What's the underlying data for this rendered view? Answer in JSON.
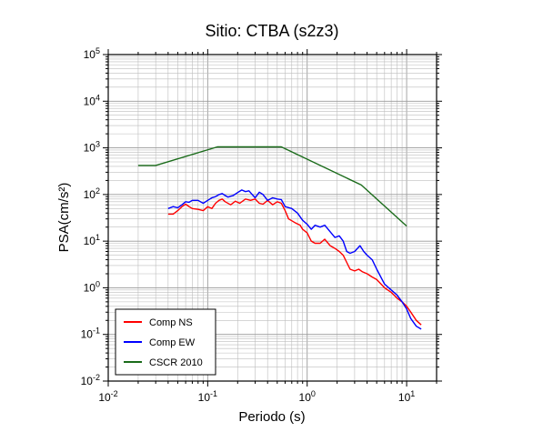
{
  "chart_data": {
    "type": "line",
    "title": "Sitio: CTBA (s2z3)",
    "xlabel": "Periodo (s)",
    "ylabel": "PSA(cm/s²)",
    "xscale": "log",
    "yscale": "log",
    "xlim": [
      0.01,
      20
    ],
    "ylim": [
      0.01,
      100000
    ],
    "grid": true,
    "legend_position": "bottom-left",
    "x_ticks": [
      {
        "value": 0.01,
        "base": "10",
        "exp": "-2"
      },
      {
        "value": 0.1,
        "base": "10",
        "exp": "-1"
      },
      {
        "value": 1,
        "base": "10",
        "exp": "0"
      },
      {
        "value": 10,
        "base": "10",
        "exp": "1"
      }
    ],
    "y_ticks": [
      {
        "value": 0.01,
        "base": "10",
        "exp": "-2"
      },
      {
        "value": 0.1,
        "base": "10",
        "exp": "-1"
      },
      {
        "value": 1,
        "base": "10",
        "exp": "0"
      },
      {
        "value": 10,
        "base": "10",
        "exp": "1"
      },
      {
        "value": 100,
        "base": "10",
        "exp": "2"
      },
      {
        "value": 1000,
        "base": "10",
        "exp": "3"
      },
      {
        "value": 10000,
        "base": "10",
        "exp": "4"
      },
      {
        "value": 100000,
        "base": "10",
        "exp": "5"
      }
    ],
    "series": [
      {
        "name": "Comp NS",
        "color": "#ff0000",
        "points": [
          [
            0.04,
            38
          ],
          [
            0.045,
            38
          ],
          [
            0.05,
            45
          ],
          [
            0.055,
            55
          ],
          [
            0.06,
            62
          ],
          [
            0.065,
            55
          ],
          [
            0.07,
            50
          ],
          [
            0.08,
            48
          ],
          [
            0.09,
            45
          ],
          [
            0.1,
            55
          ],
          [
            0.11,
            50
          ],
          [
            0.12,
            65
          ],
          [
            0.13,
            75
          ],
          [
            0.14,
            80
          ],
          [
            0.15,
            70
          ],
          [
            0.17,
            60
          ],
          [
            0.19,
            72
          ],
          [
            0.21,
            65
          ],
          [
            0.24,
            80
          ],
          [
            0.27,
            75
          ],
          [
            0.3,
            80
          ],
          [
            0.33,
            65
          ],
          [
            0.36,
            62
          ],
          [
            0.4,
            75
          ],
          [
            0.45,
            60
          ],
          [
            0.5,
            70
          ],
          [
            0.55,
            65
          ],
          [
            0.6,
            45
          ],
          [
            0.65,
            30
          ],
          [
            0.75,
            25
          ],
          [
            0.85,
            22
          ],
          [
            0.9,
            18
          ],
          [
            1.0,
            15
          ],
          [
            1.1,
            10
          ],
          [
            1.2,
            9
          ],
          [
            1.35,
            9
          ],
          [
            1.5,
            11
          ],
          [
            1.7,
            8
          ],
          [
            1.9,
            7
          ],
          [
            2.1,
            6
          ],
          [
            2.3,
            5
          ],
          [
            2.5,
            3.5
          ],
          [
            2.7,
            2.5
          ],
          [
            3.0,
            2.3
          ],
          [
            3.3,
            2.5
          ],
          [
            3.6,
            2.2
          ],
          [
            4.0,
            2.0
          ],
          [
            4.5,
            1.7
          ],
          [
            5.0,
            1.5
          ],
          [
            6.0,
            1.0
          ],
          [
            7.0,
            0.8
          ],
          [
            8.0,
            0.6
          ],
          [
            9.0,
            0.5
          ],
          [
            10.0,
            0.4
          ],
          [
            11.0,
            0.3
          ],
          [
            12.5,
            0.2
          ],
          [
            14.0,
            0.16
          ]
        ]
      },
      {
        "name": "Comp EW",
        "color": "#0000ff",
        "points": [
          [
            0.04,
            50
          ],
          [
            0.045,
            55
          ],
          [
            0.05,
            52
          ],
          [
            0.055,
            60
          ],
          [
            0.06,
            70
          ],
          [
            0.065,
            68
          ],
          [
            0.07,
            75
          ],
          [
            0.08,
            75
          ],
          [
            0.09,
            65
          ],
          [
            0.1,
            75
          ],
          [
            0.11,
            85
          ],
          [
            0.12,
            90
          ],
          [
            0.13,
            100
          ],
          [
            0.14,
            105
          ],
          [
            0.15,
            95
          ],
          [
            0.16,
            88
          ],
          [
            0.18,
            95
          ],
          [
            0.2,
            110
          ],
          [
            0.22,
            125
          ],
          [
            0.24,
            115
          ],
          [
            0.26,
            120
          ],
          [
            0.28,
            100
          ],
          [
            0.3,
            85
          ],
          [
            0.33,
            112
          ],
          [
            0.36,
            100
          ],
          [
            0.4,
            75
          ],
          [
            0.45,
            85
          ],
          [
            0.5,
            80
          ],
          [
            0.55,
            78
          ],
          [
            0.6,
            55
          ],
          [
            0.7,
            50
          ],
          [
            0.8,
            40
          ],
          [
            0.9,
            28
          ],
          [
            1.0,
            23
          ],
          [
            1.1,
            18
          ],
          [
            1.2,
            22
          ],
          [
            1.35,
            20
          ],
          [
            1.5,
            22
          ],
          [
            1.7,
            16
          ],
          [
            1.9,
            12
          ],
          [
            2.1,
            13
          ],
          [
            2.3,
            10
          ],
          [
            2.5,
            6
          ],
          [
            2.7,
            5.5
          ],
          [
            3.0,
            6
          ],
          [
            3.4,
            8
          ],
          [
            3.7,
            6
          ],
          [
            4.0,
            5
          ],
          [
            4.5,
            4
          ],
          [
            5.0,
            2.5
          ],
          [
            6.0,
            1.2
          ],
          [
            7.0,
            0.9
          ],
          [
            8.0,
            0.7
          ],
          [
            9.0,
            0.5
          ],
          [
            10.0,
            0.35
          ],
          [
            11.0,
            0.22
          ],
          [
            12.5,
            0.15
          ],
          [
            14.0,
            0.13
          ]
        ]
      },
      {
        "name": "CSCR 2010",
        "color": "#1a6b1a",
        "points": [
          [
            0.02,
            420
          ],
          [
            0.03,
            420
          ],
          [
            0.125,
            1050
          ],
          [
            0.55,
            1050
          ],
          [
            3.5,
            160
          ],
          [
            10.0,
            21
          ]
        ]
      }
    ]
  }
}
